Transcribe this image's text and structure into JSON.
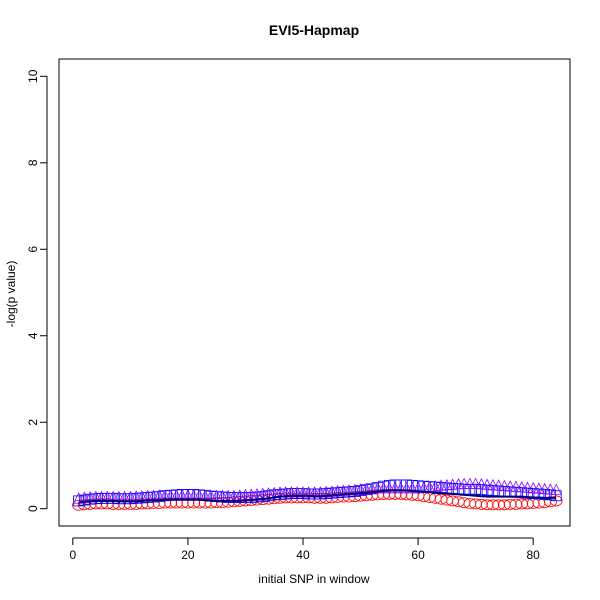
{
  "chart_data": {
    "type": "scatter",
    "title": "EVI5-Hapmap",
    "xlabel": "initial SNP in window",
    "ylabel": "-log(p value)",
    "xlim": [
      -2.4,
      86.4
    ],
    "ylim": [
      -0.4,
      10.4
    ],
    "xticks": [
      0,
      20,
      40,
      60,
      80
    ],
    "yticks": [
      0,
      2,
      4,
      6,
      8,
      10
    ],
    "grid": false,
    "legend": "none",
    "series": [
      {
        "color": "#ff0000",
        "marker": "ellipse",
        "x": [
          1,
          2,
          3,
          4,
          5,
          6,
          7,
          8,
          9,
          10,
          11,
          12,
          13,
          14,
          15,
          16,
          17,
          18,
          19,
          20,
          21,
          22,
          23,
          24,
          25,
          26,
          27,
          28,
          29,
          30,
          31,
          32,
          33,
          34,
          35,
          36,
          37,
          38,
          39,
          40,
          41,
          42,
          43,
          44,
          45,
          46,
          47,
          48,
          49,
          50,
          51,
          52,
          53,
          54,
          55,
          56,
          57,
          58,
          59,
          60,
          61,
          62,
          63,
          64,
          65,
          66,
          67,
          68,
          69,
          70,
          71,
          72,
          73,
          74,
          75,
          76,
          77,
          78,
          79,
          80,
          81,
          82,
          83,
          84
        ],
        "values": [
          0.08,
          0.09,
          0.1,
          0.11,
          0.11,
          0.11,
          0.1,
          0.1,
          0.1,
          0.1,
          0.1,
          0.11,
          0.11,
          0.12,
          0.12,
          0.13,
          0.13,
          0.13,
          0.13,
          0.13,
          0.13,
          0.13,
          0.13,
          0.13,
          0.14,
          0.14,
          0.15,
          0.16,
          0.17,
          0.18,
          0.19,
          0.2,
          0.21,
          0.22,
          0.23,
          0.24,
          0.25,
          0.25,
          0.25,
          0.25,
          0.25,
          0.24,
          0.24,
          0.24,
          0.25,
          0.26,
          0.27,
          0.27,
          0.28,
          0.29,
          0.3,
          0.31,
          0.32,
          0.33,
          0.33,
          0.33,
          0.33,
          0.32,
          0.31,
          0.3,
          0.28,
          0.26,
          0.24,
          0.22,
          0.2,
          0.18,
          0.16,
          0.14,
          0.12,
          0.11,
          0.1,
          0.09,
          0.09,
          0.09,
          0.09,
          0.1,
          0.1,
          0.11,
          0.11,
          0.12,
          0.13,
          0.14,
          0.16,
          0.18
        ]
      },
      {
        "color": "#0000ff",
        "marker": "square",
        "x": [
          1,
          2,
          3,
          4,
          5,
          6,
          7,
          8,
          9,
          10,
          11,
          12,
          13,
          14,
          15,
          16,
          17,
          18,
          19,
          20,
          21,
          22,
          23,
          24,
          25,
          26,
          27,
          28,
          29,
          30,
          31,
          32,
          33,
          34,
          35,
          36,
          37,
          38,
          39,
          40,
          41,
          42,
          43,
          44,
          45,
          46,
          47,
          48,
          49,
          50,
          51,
          52,
          53,
          54,
          55,
          56,
          57,
          58,
          59,
          60,
          61,
          62,
          63,
          64,
          65,
          66,
          67,
          68,
          69,
          70,
          71,
          72,
          73,
          74,
          75,
          76,
          77,
          78,
          79,
          80,
          81,
          82,
          83,
          84
        ],
        "values": [
          0.18,
          0.2,
          0.22,
          0.23,
          0.24,
          0.24,
          0.24,
          0.23,
          0.23,
          0.23,
          0.24,
          0.25,
          0.26,
          0.27,
          0.28,
          0.3,
          0.31,
          0.32,
          0.33,
          0.33,
          0.33,
          0.32,
          0.31,
          0.29,
          0.28,
          0.27,
          0.26,
          0.26,
          0.26,
          0.26,
          0.26,
          0.27,
          0.28,
          0.3,
          0.32,
          0.33,
          0.34,
          0.35,
          0.35,
          0.35,
          0.34,
          0.34,
          0.34,
          0.35,
          0.36,
          0.37,
          0.38,
          0.39,
          0.4,
          0.42,
          0.44,
          0.46,
          0.49,
          0.52,
          0.54,
          0.55,
          0.55,
          0.55,
          0.54,
          0.53,
          0.52,
          0.51,
          0.5,
          0.49,
          0.48,
          0.47,
          0.46,
          0.45,
          0.45,
          0.45,
          0.44,
          0.43,
          0.42,
          0.41,
          0.4,
          0.39,
          0.38,
          0.37,
          0.36,
          0.35,
          0.34,
          0.33,
          0.32,
          0.3
        ]
      },
      {
        "color": "#8800ff",
        "marker": "triangle",
        "x": [
          1,
          2,
          3,
          4,
          5,
          6,
          7,
          8,
          9,
          10,
          11,
          12,
          13,
          14,
          15,
          16,
          17,
          18,
          19,
          20,
          21,
          22,
          23,
          24,
          25,
          26,
          27,
          28,
          29,
          30,
          31,
          32,
          33,
          34,
          35,
          36,
          37,
          38,
          39,
          40,
          41,
          42,
          43,
          44,
          45,
          46,
          47,
          48,
          49,
          50,
          51,
          52,
          53,
          54,
          55,
          56,
          57,
          58,
          59,
          60,
          61,
          62,
          63,
          64,
          65,
          66,
          67,
          68,
          69,
          70,
          71,
          72,
          73,
          74,
          75,
          76,
          77,
          78,
          79,
          80,
          81,
          82,
          83,
          84
        ],
        "values": [
          0.22,
          0.24,
          0.25,
          0.26,
          0.26,
          0.26,
          0.26,
          0.26,
          0.26,
          0.26,
          0.27,
          0.27,
          0.28,
          0.28,
          0.29,
          0.29,
          0.29,
          0.29,
          0.29,
          0.29,
          0.29,
          0.29,
          0.28,
          0.28,
          0.28,
          0.28,
          0.28,
          0.28,
          0.29,
          0.3,
          0.31,
          0.32,
          0.33,
          0.34,
          0.35,
          0.36,
          0.36,
          0.36,
          0.36,
          0.36,
          0.36,
          0.36,
          0.36,
          0.37,
          0.38,
          0.39,
          0.4,
          0.41,
          0.42,
          0.43,
          0.44,
          0.45,
          0.46,
          0.46,
          0.46,
          0.46,
          0.46,
          0.46,
          0.46,
          0.46,
          0.47,
          0.48,
          0.5,
          0.52,
          0.53,
          0.54,
          0.55,
          0.56,
          0.56,
          0.56,
          0.55,
          0.54,
          0.53,
          0.52,
          0.51,
          0.5,
          0.49,
          0.48,
          0.47,
          0.46,
          0.45,
          0.44,
          0.43,
          0.42
        ]
      },
      {
        "color": "#000080",
        "marker": "line",
        "x": [
          1,
          2,
          3,
          4,
          5,
          6,
          7,
          8,
          9,
          10,
          11,
          12,
          13,
          14,
          15,
          16,
          17,
          18,
          19,
          20,
          21,
          22,
          23,
          24,
          25,
          26,
          27,
          28,
          29,
          30,
          31,
          32,
          33,
          34,
          35,
          36,
          37,
          38,
          39,
          40,
          41,
          42,
          43,
          44,
          45,
          46,
          47,
          48,
          49,
          50,
          51,
          52,
          53,
          54,
          55,
          56,
          57,
          58,
          59,
          60,
          61,
          62,
          63,
          64,
          65,
          66,
          67,
          68,
          69,
          70,
          71,
          72,
          73,
          74,
          75,
          76,
          77,
          78,
          79,
          80,
          81,
          82,
          83,
          84
        ],
        "values": [
          0.14,
          0.16,
          0.17,
          0.18,
          0.18,
          0.18,
          0.18,
          0.17,
          0.17,
          0.17,
          0.17,
          0.18,
          0.19,
          0.2,
          0.2,
          0.21,
          0.21,
          0.21,
          0.21,
          0.21,
          0.21,
          0.21,
          0.2,
          0.19,
          0.18,
          0.18,
          0.18,
          0.18,
          0.18,
          0.19,
          0.2,
          0.21,
          0.22,
          0.24,
          0.26,
          0.28,
          0.29,
          0.3,
          0.3,
          0.3,
          0.3,
          0.29,
          0.29,
          0.3,
          0.31,
          0.32,
          0.33,
          0.34,
          0.35,
          0.36,
          0.37,
          0.38,
          0.4,
          0.41,
          0.42,
          0.42,
          0.42,
          0.42,
          0.41,
          0.4,
          0.39,
          0.38,
          0.37,
          0.36,
          0.35,
          0.34,
          0.33,
          0.32,
          0.31,
          0.3,
          0.29,
          0.28,
          0.28,
          0.28,
          0.28,
          0.28,
          0.28,
          0.28,
          0.27,
          0.26,
          0.26,
          0.25,
          0.25,
          0.25
        ]
      }
    ]
  }
}
